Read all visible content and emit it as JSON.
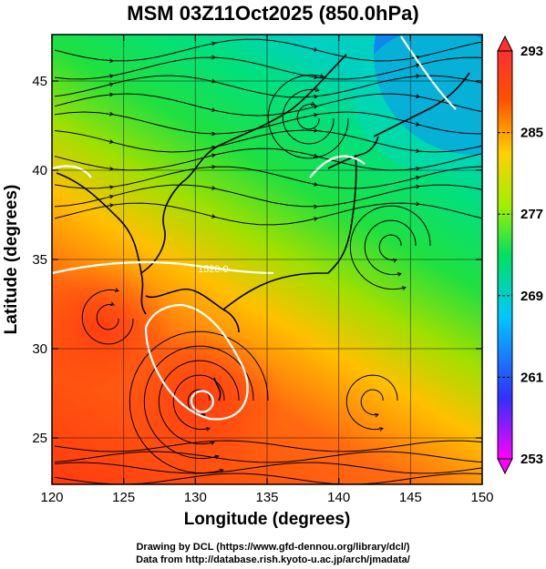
{
  "title": "MSM 03Z11Oct2025 (850.0hPa)",
  "map": {
    "x_axis_label": "Longitude (degrees)",
    "y_axis_label": "Latitude  (degrees)",
    "x_ticks": [
      "120",
      "125",
      "130",
      "135",
      "140",
      "145",
      "150"
    ],
    "y_ticks": [
      "25",
      "30",
      "35",
      "40",
      "45"
    ],
    "lon_range": [
      120,
      150
    ],
    "lat_range": [
      22.4,
      47.6
    ],
    "contour_label": "1520.0",
    "field_colors": {
      "warm": "#ff3a10",
      "mid": "#00e040",
      "cool": "#1070ff"
    }
  },
  "colorbar": {
    "ticks": [
      "293",
      "285",
      "277",
      "269",
      "261",
      "253"
    ],
    "range": [
      253,
      293
    ],
    "colors": [
      "#ff00ff",
      "#3030ff",
      "#00c8ff",
      "#00e060",
      "#a0f000",
      "#ffd000",
      "#ff5000",
      "#ff3030"
    ]
  },
  "credits": [
    "Drawing by DCL (https://www.gfd-dennou.org/library/dcl/)",
    "Data from http://database.rish.kyoto-u.ac.jp/arch/jmadata/"
  ]
}
